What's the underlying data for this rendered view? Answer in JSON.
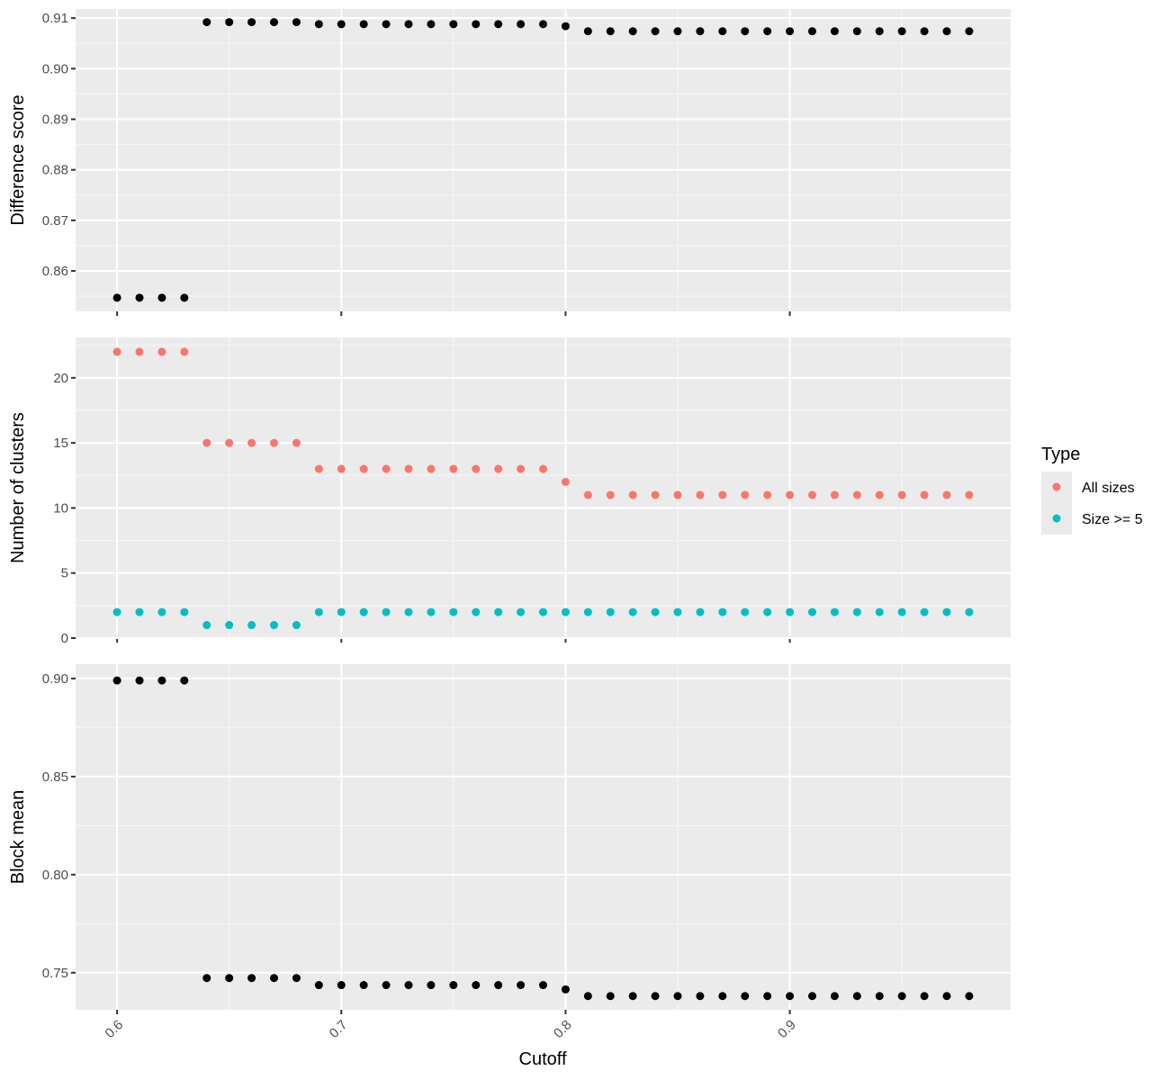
{
  "chart_data": {
    "type": "scatter",
    "xlabel": "Cutoff",
    "x_ticks": [
      0.6,
      0.7,
      0.8,
      0.9
    ],
    "x_tick_labels": [
      "0.6",
      "0.7",
      "0.8",
      "0.9"
    ],
    "xlim": [
      0.5815,
      0.9985
    ],
    "x": [
      0.6,
      0.61,
      0.62,
      0.63,
      0.64,
      0.65,
      0.66,
      0.67,
      0.68,
      0.69,
      0.7,
      0.71,
      0.72,
      0.73,
      0.74,
      0.75,
      0.76,
      0.77,
      0.78,
      0.79,
      0.8,
      0.81,
      0.82,
      0.83,
      0.84,
      0.85,
      0.86,
      0.87,
      0.88,
      0.89,
      0.9,
      0.91,
      0.92,
      0.93,
      0.94,
      0.95,
      0.96,
      0.97,
      0.98
    ],
    "grid": true,
    "panels": [
      {
        "ylabel": "Difference score",
        "ylim": [
          0.852,
          0.9118
        ],
        "y_ticks": [
          0.86,
          0.87,
          0.88,
          0.89,
          0.9,
          0.91
        ],
        "y_tick_labels": [
          "0.86",
          "0.87",
          "0.88",
          "0.89",
          "0.90",
          "0.91"
        ],
        "series": [
          {
            "color": "#000000",
            "values": [
              0.8547,
              0.8547,
              0.8547,
              0.8547,
              0.9092,
              0.9092,
              0.9092,
              0.9092,
              0.9092,
              0.9088,
              0.9088,
              0.9088,
              0.9088,
              0.9088,
              0.9088,
              0.9088,
              0.9088,
              0.9088,
              0.9088,
              0.9088,
              0.9084,
              0.9074,
              0.9074,
              0.9074,
              0.9074,
              0.9074,
              0.9074,
              0.9074,
              0.9074,
              0.9074,
              0.9074,
              0.9074,
              0.9074,
              0.9074,
              0.9074,
              0.9074,
              0.9074,
              0.9074,
              0.9074
            ]
          }
        ]
      },
      {
        "ylabel": "Number of clusters",
        "ylim": [
          0,
          23.1
        ],
        "y_ticks": [
          0,
          5,
          10,
          15,
          20
        ],
        "y_tick_labels": [
          "0",
          "5",
          "10",
          "15",
          "20"
        ],
        "series": [
          {
            "name": "All sizes",
            "color": "#F8766D",
            "values": [
              22,
              22,
              22,
              22,
              15,
              15,
              15,
              15,
              15,
              13,
              13,
              13,
              13,
              13,
              13,
              13,
              13,
              13,
              13,
              13,
              12,
              11,
              11,
              11,
              11,
              11,
              11,
              11,
              11,
              11,
              11,
              11,
              11,
              11,
              11,
              11,
              11,
              11,
              11
            ]
          },
          {
            "name": "Size >= 5",
            "color": "#00BFC4",
            "values": [
              2,
              2,
              2,
              2,
              1,
              1,
              1,
              1,
              1,
              2,
              2,
              2,
              2,
              2,
              2,
              2,
              2,
              2,
              2,
              2,
              2,
              2,
              2,
              2,
              2,
              2,
              2,
              2,
              2,
              2,
              2,
              2,
              2,
              2,
              2,
              2,
              2,
              2,
              2
            ]
          }
        ]
      },
      {
        "ylabel": "Block mean",
        "ylim": [
          0.7311,
          0.9073
        ],
        "y_ticks": [
          0.75,
          0.8,
          0.85,
          0.9
        ],
        "y_tick_labels": [
          "0.75",
          "0.80",
          "0.85",
          "0.90"
        ],
        "series": [
          {
            "color": "#000000",
            "values": [
              0.899,
              0.899,
              0.899,
              0.899,
              0.7473,
              0.7473,
              0.7473,
              0.7473,
              0.7473,
              0.7437,
              0.7437,
              0.7437,
              0.7437,
              0.7437,
              0.7437,
              0.7437,
              0.7437,
              0.7437,
              0.7437,
              0.7437,
              0.7415,
              0.7381,
              0.7381,
              0.7381,
              0.7381,
              0.7381,
              0.7381,
              0.7381,
              0.7381,
              0.7381,
              0.7381,
              0.7381,
              0.7381,
              0.7381,
              0.7381,
              0.7381,
              0.7381,
              0.7381,
              0.7381
            ]
          }
        ]
      }
    ],
    "legend": {
      "title": "Type",
      "placement": "right",
      "entries": [
        {
          "label": "All sizes",
          "color": "#F8766D"
        },
        {
          "label": "Size >= 5",
          "color": "#00BFC4"
        }
      ]
    }
  }
}
